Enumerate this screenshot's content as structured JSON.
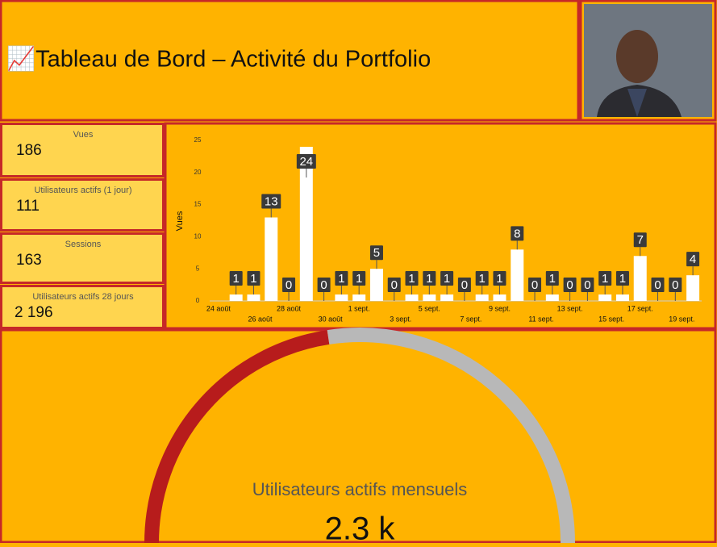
{
  "header": {
    "title": "📈Tableau de Bord – Activité du Portfolio"
  },
  "kpis": [
    {
      "label": "Vues",
      "value": "186"
    },
    {
      "label": "Utilisateurs actifs (1 jour)",
      "value": "111"
    },
    {
      "label": "Sessions",
      "value": "163"
    },
    {
      "label": "Utilisateurs actifs 28 jours",
      "value": "2 196"
    }
  ],
  "chart_data": {
    "type": "bar",
    "y_label": "Vues",
    "categories": [
      "24 août",
      null,
      "26 août",
      null,
      "28 août",
      null,
      "30 août",
      null,
      "1 sept.",
      null,
      "3 sept.",
      null,
      "5 sept.",
      null,
      "7 sept.",
      null,
      "9 sept.",
      null,
      "11 sept.",
      null,
      "13 sept.",
      null,
      "15 sept.",
      null,
      "17 sept.",
      null,
      "19 sept.",
      null
    ],
    "values": [
      null,
      1,
      1,
      13,
      0,
      24,
      0,
      1,
      1,
      5,
      0,
      1,
      1,
      1,
      0,
      1,
      1,
      8,
      0,
      1,
      0,
      0,
      1,
      1,
      7,
      0,
      0,
      4
    ],
    "color": "#ffffff",
    "ylim": [
      0,
      25
    ],
    "yticks": [
      0,
      5,
      10,
      15,
      20,
      25
    ]
  },
  "gauge": {
    "label": "Utilisateurs actifs mensuels",
    "value": "2.3 k"
  }
}
